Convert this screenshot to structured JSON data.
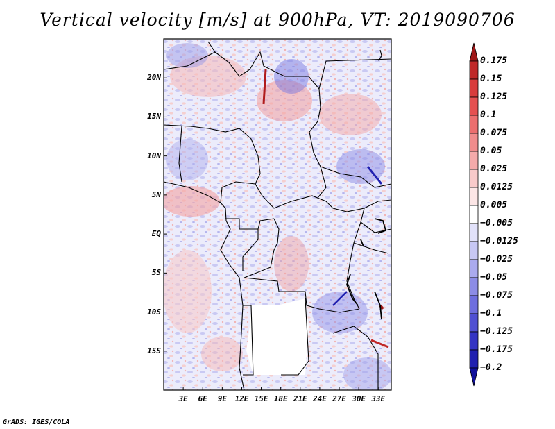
{
  "title": "Vertical velocity [m/s] at 900hPa, VT: 2019090706",
  "credit": "GrADS: IGES/COLA",
  "map": {
    "lon_range": [
      0,
      35
    ],
    "lat_range": [
      -20,
      25
    ],
    "lat_ticks": [
      "20N",
      "15N",
      "10N",
      "5N",
      "EQ",
      "5S",
      "10S",
      "15S"
    ],
    "lat_values": [
      20,
      15,
      10,
      5,
      0,
      -5,
      -10,
      -15
    ],
    "lon_ticks": [
      "3E",
      "6E",
      "9E",
      "12E",
      "15E",
      "18E",
      "21E",
      "24E",
      "27E",
      "30E",
      "33E"
    ],
    "lon_values": [
      3,
      6,
      9,
      12,
      15,
      18,
      21,
      24,
      27,
      30,
      33
    ]
  },
  "colorbar": {
    "labels": [
      "0.175",
      "0.15",
      "0.125",
      "0.1",
      "0.075",
      "0.05",
      "0.025",
      "0.0125",
      "0.005",
      "-0.005",
      "-0.0125",
      "-0.025",
      "-0.05",
      "-0.075",
      "-0.1",
      "-0.125",
      "-0.175",
      "-0.2"
    ],
    "colors": [
      "#a01818",
      "#c02828",
      "#d83c3c",
      "#e55050",
      "#ec6e6e",
      "#f08c8c",
      "#f4aaaa",
      "#f8caca",
      "#fce6e6",
      "#ffffff",
      "#e2e2fa",
      "#c8c8f4",
      "#aaaaee",
      "#8c8ce6",
      "#6e6ede",
      "#5050d2",
      "#3434c4",
      "#2020b0",
      "#10109a"
    ]
  }
}
